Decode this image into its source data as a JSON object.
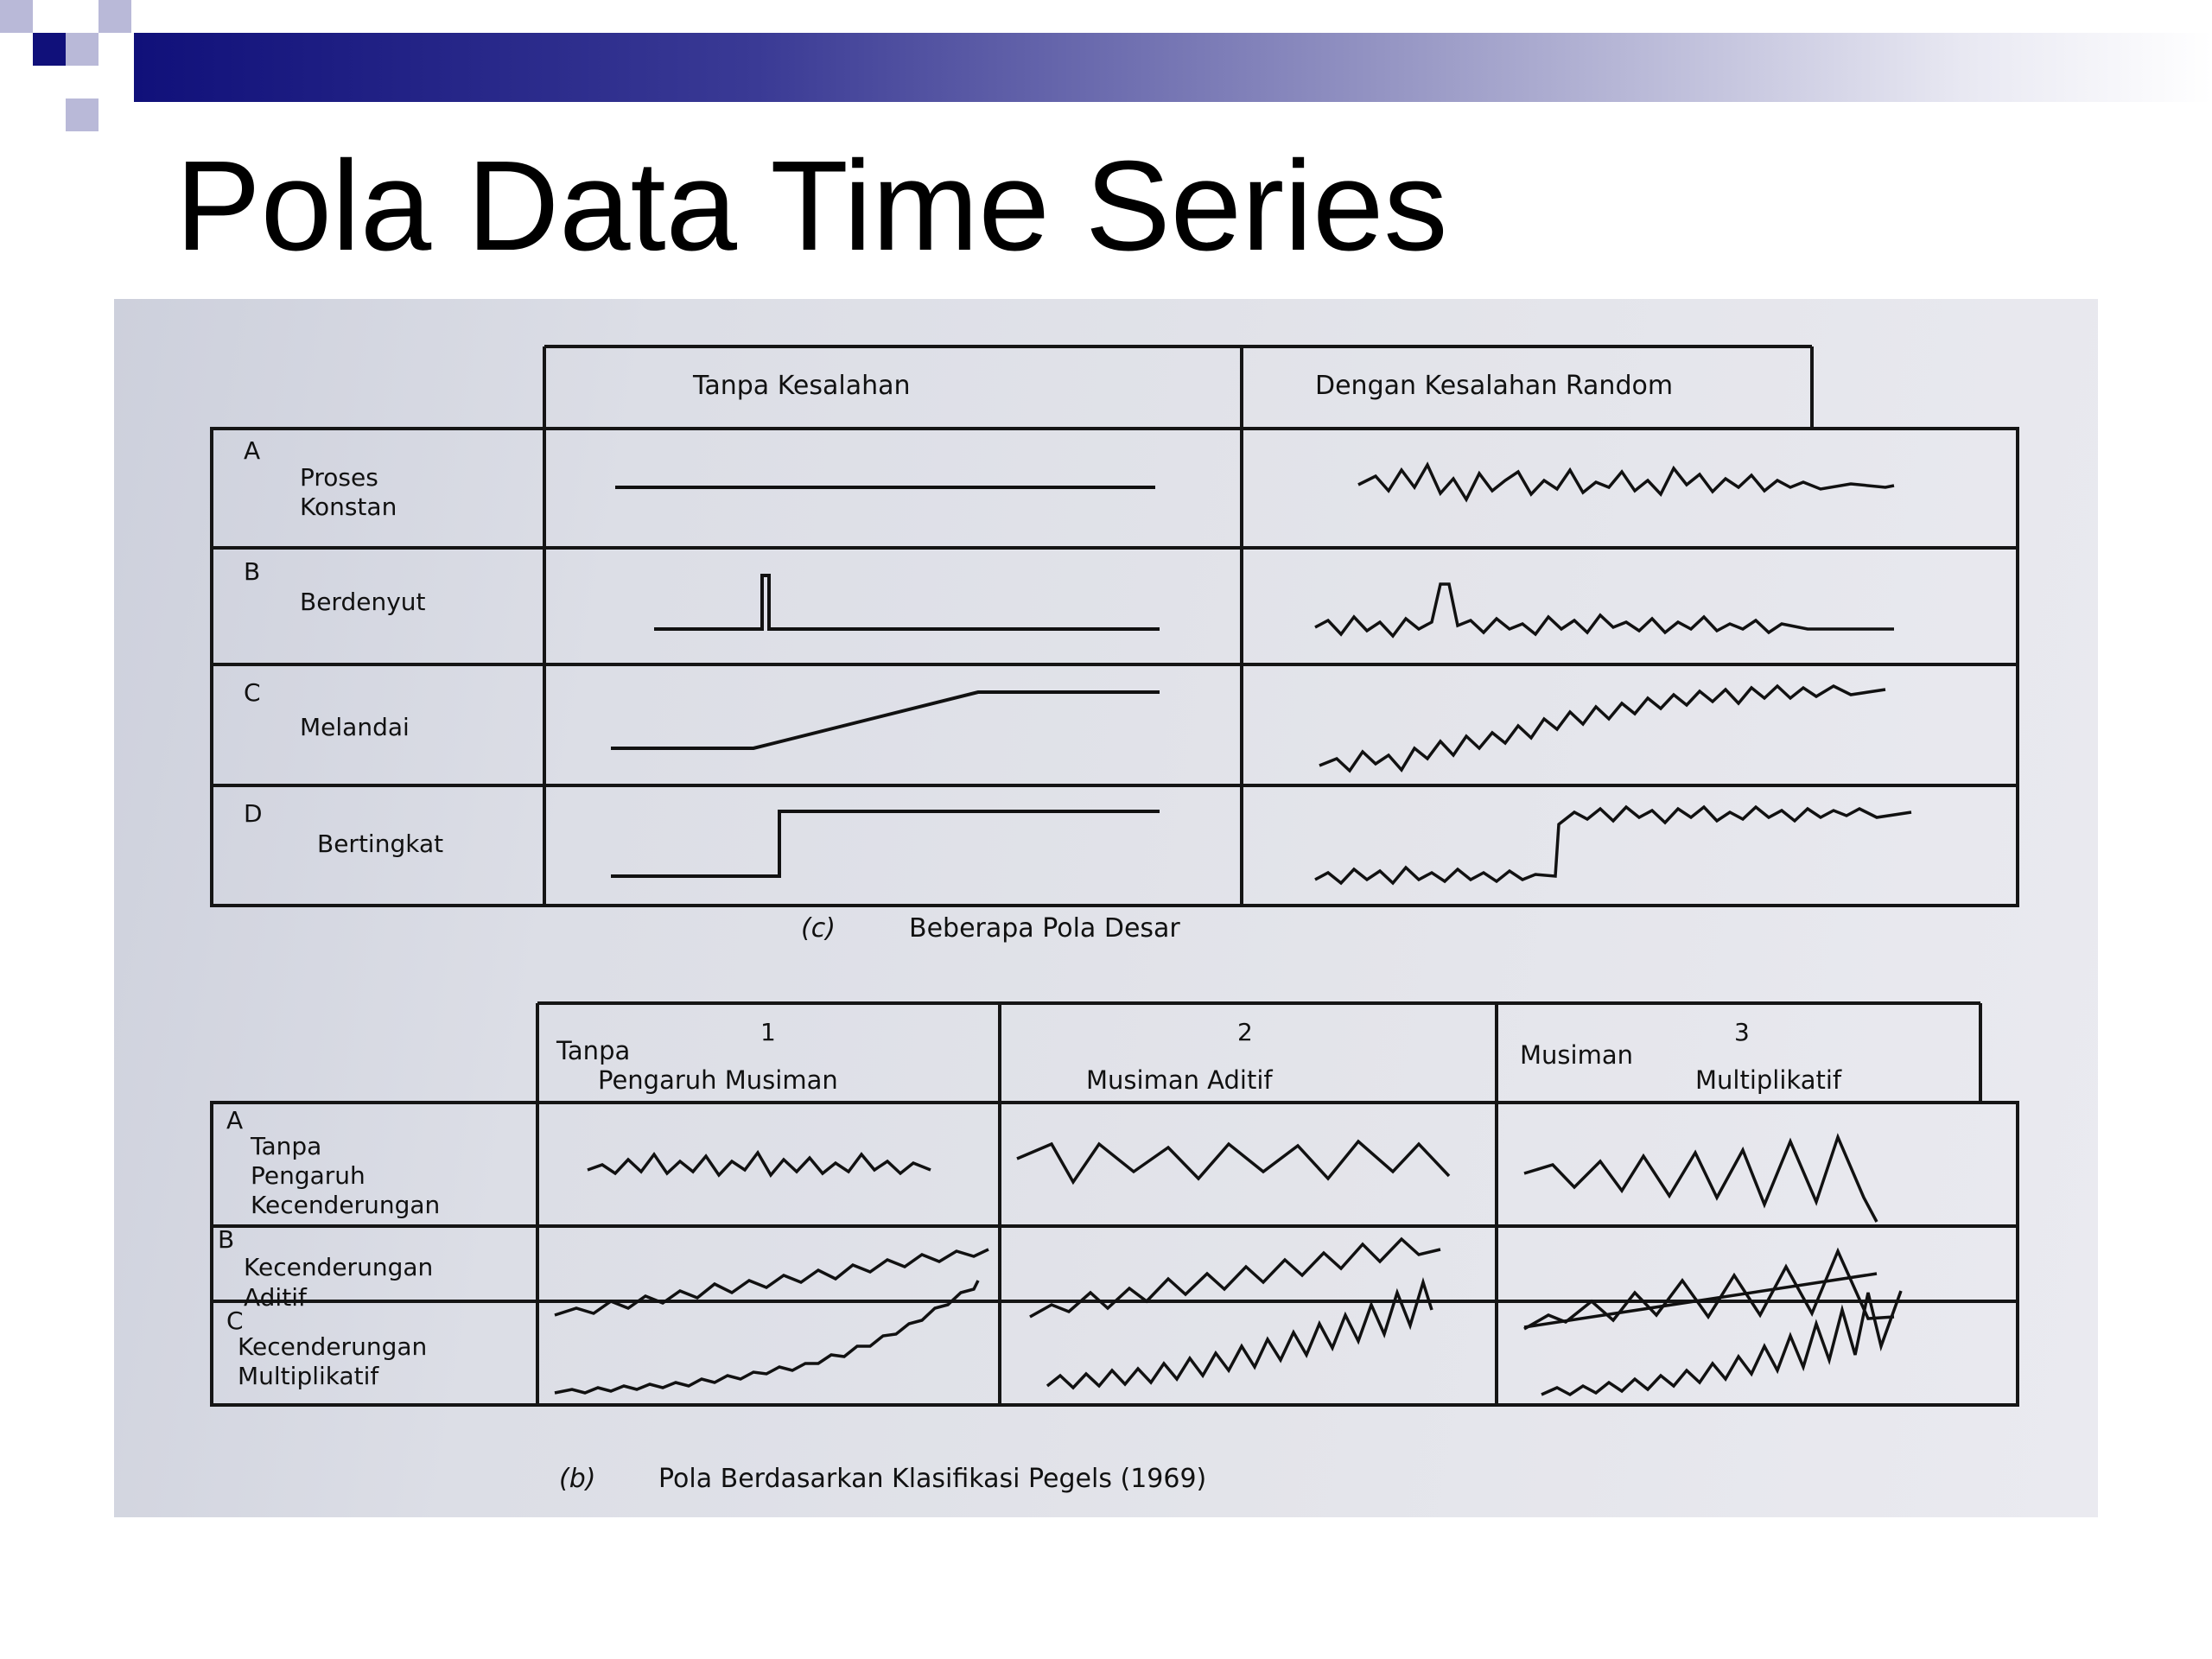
{
  "slide": {
    "title": "Pola Data Time Series",
    "accent_color": "#10107a"
  },
  "figure_a": {
    "col_headers": [
      "Tanpa Kesalahan",
      "Dengan Kesalahan Random"
    ],
    "rows": [
      {
        "letter": "A",
        "label_lines": [
          "Proses",
          "Konstan"
        ],
        "pattern": "constant"
      },
      {
        "letter": "B",
        "label_lines": [
          "Berdenyut"
        ],
        "pattern": "pulse"
      },
      {
        "letter": "C",
        "label_lines": [
          "Melandai"
        ],
        "pattern": "ramp"
      },
      {
        "letter": "D",
        "label_lines": [
          "Bertingkat"
        ],
        "pattern": "step"
      }
    ],
    "caption_tag": "(c)",
    "caption": "Beberapa Pola Desar"
  },
  "figure_b": {
    "col_numbers": [
      "1",
      "2",
      "3"
    ],
    "col_headers": [
      [
        "Tanpa",
        "Pengaruh Musiman"
      ],
      [
        "Musiman Aditif"
      ],
      [
        "Musiman",
        "Multiplikatif"
      ]
    ],
    "rows": [
      {
        "letter": "A",
        "label_lines": [
          "Tanpa",
          "Pengaruh",
          "Kecenderungan"
        ]
      },
      {
        "letter": "B",
        "label_lines": [
          "Kecenderungan",
          "Aditif"
        ]
      },
      {
        "letter": "C",
        "label_lines": [
          "Kecenderungan",
          "Multiplikatif"
        ]
      }
    ],
    "caption_tag": "(b)",
    "caption": "Pola Berdasarkan Klasifikasi Pegels (1969)"
  }
}
